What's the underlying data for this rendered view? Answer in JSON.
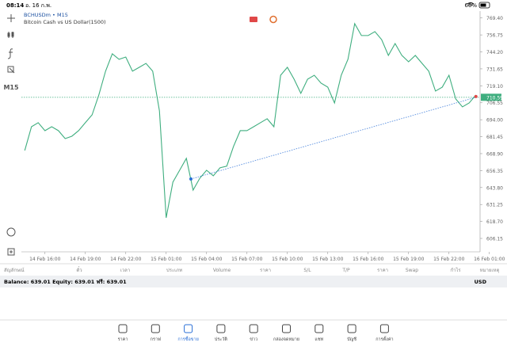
{
  "status_bar": {
    "time": "08:14",
    "date": "อ. 16 ก.พ.",
    "battery": "66%"
  },
  "toolbar": {
    "timeframe": "M15"
  },
  "chart_data": {
    "type": "line",
    "title": "BCHUSDm • M15",
    "subtitle": "Bitcoin Cash vs US Dollar(1500)",
    "categories": [
      null,
      null,
      null,
      "14 Feb 16:00",
      null,
      null,
      null,
      null,
      null,
      "14 Feb 19:00",
      null,
      null,
      null,
      null,
      null,
      "14 Feb 22:00",
      null,
      null,
      null,
      null,
      null,
      "15 Feb 01:00",
      null,
      null,
      null,
      null,
      null,
      "15 Feb 04:00",
      null,
      null,
      null,
      null,
      null,
      "15 Feb 07:00",
      null,
      null,
      null,
      null,
      null,
      "15 Feb 10:00",
      null,
      null,
      null,
      null,
      null,
      "15 Feb 13:00",
      null,
      null,
      null,
      null,
      null,
      "15 Feb 16:00",
      null,
      null,
      null,
      null,
      null,
      "15 Feb 19:00",
      null,
      null,
      null,
      null,
      null,
      "15 Feb 22:00",
      null,
      null,
      null,
      null,
      null,
      "16 Feb 01:00"
    ],
    "series": [
      {
        "name": "BCHUSDm",
        "color": "#3fae7f",
        "values": [
          671.2,
          688.8,
          691.8,
          685.9,
          688.8,
          685.9,
          680.0,
          681.8,
          685.9,
          691.8,
          697.6,
          712.3,
          729.9,
          742.8,
          738.7,
          740.4,
          729.9,
          732.8,
          735.7,
          729.9,
          700.6,
          621.4,
          647.8,
          656.6,
          665.4,
          641.9,
          650.7,
          656.6,
          652.5,
          658.4,
          659.6,
          674.2,
          685.9,
          685.9,
          688.8,
          691.8,
          694.7,
          688.8,
          726.9,
          732.8,
          724.0,
          713.5,
          724.0,
          726.9,
          721.1,
          718.1,
          706.4,
          726.9,
          738.7,
          765.1,
          756.3,
          756.3,
          759.2,
          753.3,
          741.6,
          750.4,
          741.6,
          736.9,
          741.6,
          735.7,
          729.9,
          715.2,
          718.1,
          726.9,
          709.4,
          703.5,
          706.4,
          712.3,
          null,
          null
        ]
      }
    ],
    "ylim": [
      596.2,
      774.4
    ],
    "yticks": [
      606.15,
      {
        "value": 618.7,
        "label": "618.70"
      },
      631.25,
      {
        "value": 643.8,
        "label": "643.80"
      },
      656.35,
      {
        "value": 668.9,
        "label": "668.90"
      },
      681.45,
      {
        "value": 694.0,
        "label": "694.00"
      },
      706.55,
      {
        "value": 719.1,
        "label": "719.10"
      },
      731.65,
      {
        "value": 744.2,
        "label": "744.20"
      },
      756.75,
      {
        "value": 769.4,
        "label": "769.40"
      }
    ],
    "grid": false,
    "current_price": 710.59,
    "current_price_color": "#3fae7f",
    "trade": {
      "open_price": 650.1,
      "color": "#2a6fd6"
    }
  },
  "table": {
    "columns": [
      "สัญลักษณ์",
      "ตั๋ว",
      "เวลา",
      "ประเภท",
      "Volume",
      "ราคา",
      "S/L",
      "T/P",
      "ราคา",
      "Swap",
      "กำไร",
      "หมายเหตุ"
    ]
  },
  "balance": {
    "balance_label": "Balance:",
    "balance": 639.01,
    "equity_label": "Equity:",
    "equity": 639.01,
    "free_label": "ฟรี:",
    "free": 639.01,
    "currency": "USD"
  },
  "tab_bar": {
    "tabs": [
      "ราคา",
      "กราฟ",
      "การซื้อขาย",
      "ประวัติ",
      "ข่าว",
      "กล่องจดหมาย",
      "แชท",
      "บัญชี",
      "การตั้งค่า"
    ]
  }
}
